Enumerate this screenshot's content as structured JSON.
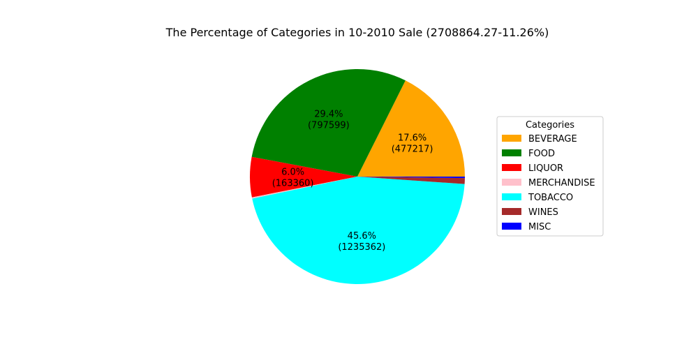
{
  "chart_data": {
    "type": "pie",
    "title": "The Percentage of Categories in 10-2010 Sale (2708864.27-11.26%)",
    "legend_title": "Categories",
    "legend_position": "right",
    "slices": [
      {
        "label": "BEVERAGE",
        "value": 477217,
        "pct_label": "17.6%",
        "value_label": "(477217)",
        "color": "#ffa500"
      },
      {
        "label": "FOOD",
        "value": 797599,
        "pct_label": "29.4%",
        "value_label": "(797599)",
        "color": "#008000"
      },
      {
        "label": "LIQUOR",
        "value": 163360,
        "pct_label": "6.0%",
        "value_label": "(163360)",
        "color": "#ff0000"
      },
      {
        "label": "MERCHANDISE",
        "value": 5400,
        "pct_label": "",
        "value_label": "",
        "color": "#ffc0cb"
      },
      {
        "label": "TOBACCO",
        "value": 1235362,
        "pct_label": "45.6%",
        "value_label": "(1235362)",
        "color": "#00ffff"
      },
      {
        "label": "WINES",
        "value": 24000,
        "pct_label": "",
        "value_label": "",
        "color": "#a52a2a"
      },
      {
        "label": "MISC",
        "value": 5926,
        "pct_label": "",
        "value_label": "",
        "color": "#0000ff"
      }
    ]
  }
}
